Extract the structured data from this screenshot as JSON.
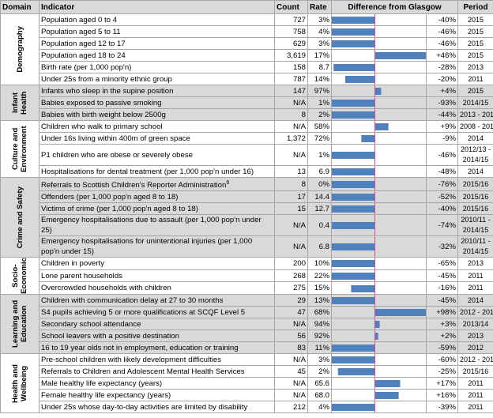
{
  "header": [
    "Domain",
    "Indicator",
    "Count",
    "Rate",
    "Difference from Glasgow",
    "Period"
  ],
  "groups": [
    {
      "domain": "Demography",
      "rows": [
        {
          "indicator": "Population aged 0 to 4",
          "count": "727",
          "rate": "3%",
          "diff": {
            "value": -40,
            "label": "-40%"
          },
          "period": "2015"
        },
        {
          "indicator": "Population aged 5 to 11",
          "count": "758",
          "rate": "4%",
          "diff": {
            "value": -46,
            "label": "-46%"
          },
          "period": "2015"
        },
        {
          "indicator": "Population aged 12 to 17",
          "count": "629",
          "rate": "3%",
          "diff": {
            "value": -46,
            "label": "-46%"
          },
          "period": "2015"
        },
        {
          "indicator": "Population aged 18 to 24",
          "count": "3,619",
          "rate": "17%",
          "diff": {
            "value": 46,
            "label": "+46%"
          },
          "period": "2015"
        },
        {
          "indicator": "Birth rate (per 1,000 pop'n)",
          "count": "158",
          "rate": "8.7",
          "diff": {
            "value": -28,
            "label": "-28%"
          },
          "period": "2013"
        },
        {
          "indicator": "Under 25s from a minority ethnic group",
          "count": "787",
          "rate": "14%",
          "diff": {
            "value": -20,
            "label": "-20%"
          },
          "period": "2011"
        }
      ]
    },
    {
      "domain": "Infant Health",
      "rows": [
        {
          "indicator": "Infants who sleep in the supine position",
          "count": "147",
          "rate": "97%",
          "diff": {
            "value": 4,
            "label": "+4%"
          },
          "period": "2015"
        },
        {
          "indicator": "Babies exposed to passive smoking",
          "count": "N/A",
          "rate": "1%",
          "diff": {
            "value": -93,
            "label": "-93%"
          },
          "period": "2014/15"
        },
        {
          "indicator": "Babies with birth weight below 2500g",
          "count": "8",
          "rate": "2%",
          "diff": {
            "value": -44,
            "label": "-44%"
          },
          "period": "2013 - 2015"
        }
      ]
    },
    {
      "domain": "Culture and Environment",
      "rows": [
        {
          "indicator": "Children who walk to primary school",
          "count": "N/A",
          "rate": "58%",
          "diff": {
            "value": 9,
            "label": "+9%"
          },
          "period": "2008 - 2015"
        },
        {
          "indicator": "Under 16s living within 400m of green space",
          "count": "1,372",
          "rate": "72%",
          "diff": {
            "value": -9,
            "label": "-9%"
          },
          "period": "2014"
        },
        {
          "indicator": "P1 children who are obese or severely obese",
          "count": "N/A",
          "rate": "1%",
          "diff": {
            "value": -46,
            "label": "-46%"
          },
          "period": "2012/13 - 2014/15"
        },
        {
          "indicator": "Hospitalisations for dental treatment (per 1,000 pop'n under 16)",
          "count": "13",
          "rate": "6.9",
          "diff": {
            "value": -48,
            "label": "-48%"
          },
          "period": "2014"
        }
      ]
    },
    {
      "domain": "Crime and Safety",
      "rows": [
        {
          "indicator": "Referrals to Scottish Children's Reporter Administration",
          "note": "6",
          "count": "8",
          "rate": "0%",
          "diff": {
            "value": -76,
            "label": "-76%"
          },
          "period": "2015/16"
        },
        {
          "indicator": "Offenders (per 1,000 pop'n aged 8 to 18)",
          "count": "17",
          "rate": "14.4",
          "diff": {
            "value": -52,
            "label": "-52%"
          },
          "period": "2015/16"
        },
        {
          "indicator": "Victims of crime (per 1,000 pop'n aged 8 to 18)",
          "count": "15",
          "rate": "12.7",
          "diff": {
            "value": -40,
            "label": "-40%"
          },
          "period": "2015/16"
        },
        {
          "indicator": "Emergency hospitalisations due to assault (per 1,000 pop'n under 25)",
          "count": "N/A",
          "rate": "0.4",
          "diff": {
            "value": -74,
            "label": "-74%"
          },
          "period": "2010/11 - 2014/15"
        },
        {
          "indicator": "Emergency hospitalisations for unintentional injuries (per 1,000 pop'n under 15)",
          "count": "N/A",
          "rate": "6.8",
          "diff": {
            "value": -32,
            "label": "-32%"
          },
          "period": "2010/11 - 2014/15"
        }
      ]
    },
    {
      "domain": "Socio-Economic",
      "rows": [
        {
          "indicator": "Children in poverty",
          "count": "200",
          "rate": "10%",
          "diff": {
            "value": -65,
            "label": "-65%"
          },
          "period": "2013"
        },
        {
          "indicator": "Lone parent households",
          "count": "268",
          "rate": "22%",
          "diff": {
            "value": -45,
            "label": "-45%"
          },
          "period": "2011"
        },
        {
          "indicator": "Overcrowded households with children",
          "count": "275",
          "rate": "15%",
          "diff": {
            "value": -16,
            "label": "-16%"
          },
          "period": "2011"
        }
      ]
    },
    {
      "domain": "Learning and Education",
      "rows": [
        {
          "indicator": "Children with communication delay at 27 to 30 months",
          "count": "29",
          "rate": "13%",
          "diff": {
            "value": -45,
            "label": "-45%"
          },
          "period": "2014"
        },
        {
          "indicator": "S4 pupils achieving 5 or more qualifications at SCQF Level 5",
          "count": "47",
          "rate": "68%",
          "diff": {
            "value": 98,
            "label": "+98%"
          },
          "period": "2012 - 2013"
        },
        {
          "indicator": "Secondary school attendance",
          "count": "N/A",
          "rate": "94%",
          "diff": {
            "value": 3,
            "label": "+3%"
          },
          "period": "2013/14"
        },
        {
          "indicator": "School leavers with a positive destination",
          "count": "56",
          "rate": "92%",
          "diff": {
            "value": 2,
            "label": "+2%"
          },
          "period": "2013"
        },
        {
          "indicator": "16 to 19 year olds not in employment, education or training",
          "count": "83",
          "rate": "11%",
          "diff": {
            "value": -59,
            "label": "-59%"
          },
          "period": "2012"
        }
      ]
    },
    {
      "domain": "Health and Wellbeing",
      "rows": [
        {
          "indicator": "Pre-school children with likely development difficulties",
          "count": "N/A",
          "rate": "3%",
          "diff": {
            "value": -60,
            "label": "-60%"
          },
          "period": "2012 - 2014"
        },
        {
          "indicator": "Referrals to Children and Adolescent Mental Health Services",
          "count": "45",
          "rate": "2%",
          "diff": {
            "value": -25,
            "label": "-25%"
          },
          "period": "2015/16"
        },
        {
          "indicator": "Male healthy life expectancy (years)",
          "count": "N/A",
          "rate": "65.6",
          "diff": {
            "value": 17,
            "label": "+17%"
          },
          "period": "2011"
        },
        {
          "indicator": "Female healthy life expectancy (years)",
          "count": "N/A",
          "rate": "68.0",
          "diff": {
            "value": 16,
            "label": "+16%"
          },
          "period": "2011"
        },
        {
          "indicator": "Under 25s whose day-to-day activities are limited by disability",
          "count": "212",
          "rate": "4%",
          "diff": {
            "value": -39,
            "label": "-39%"
          },
          "period": "2011"
        }
      ]
    }
  ]
}
